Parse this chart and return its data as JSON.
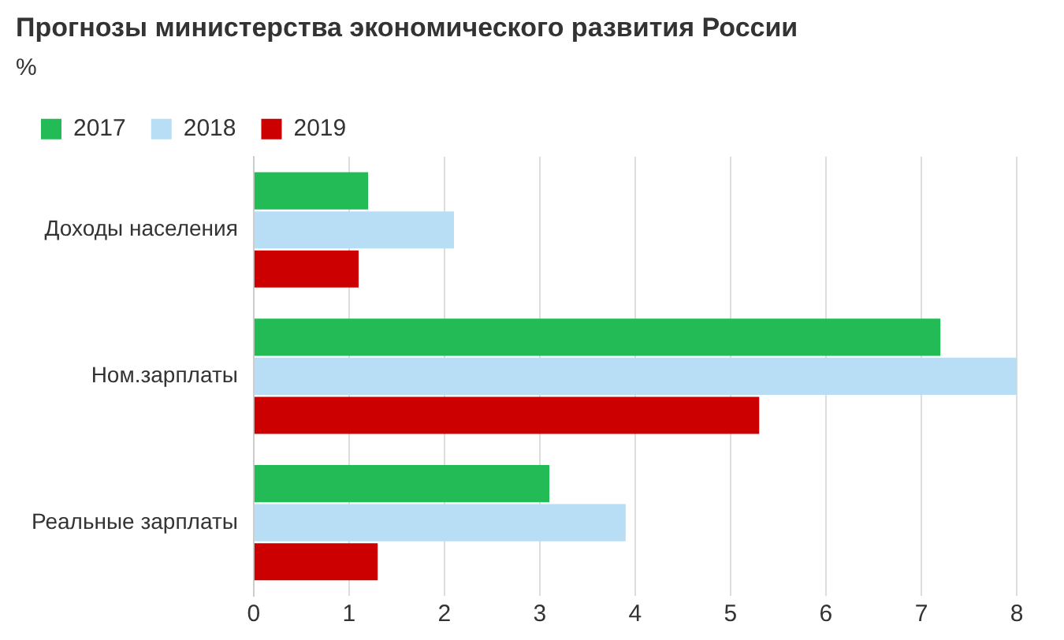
{
  "chart_data": {
    "type": "bar",
    "orientation": "horizontal",
    "title": "Прогнозы министерства экономического развития России",
    "subtitle": "%",
    "categories": [
      "Доходы населения",
      "Ном.зарплаты",
      "Реальные зарплаты"
    ],
    "series": [
      {
        "name": "2017",
        "color": "#22bb55",
        "values": [
          1.2,
          7.2,
          3.1
        ]
      },
      {
        "name": "2018",
        "color": "#b8def5",
        "values": [
          2.1,
          8.0,
          3.9
        ]
      },
      {
        "name": "2019",
        "color": "#cc0000",
        "values": [
          1.1,
          5.3,
          1.3
        ]
      }
    ],
    "xlim": [
      0,
      8
    ],
    "xticks": [
      0,
      1,
      2,
      3,
      4,
      5,
      6,
      7,
      8
    ],
    "grid": "x",
    "legend": "top left"
  }
}
